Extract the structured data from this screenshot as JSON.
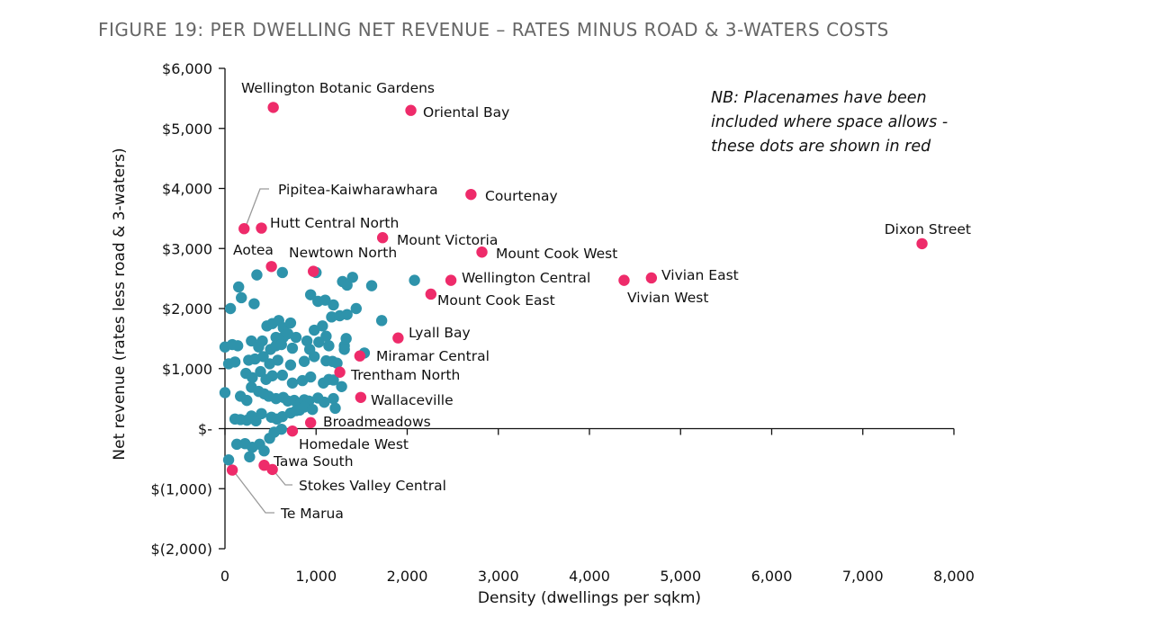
{
  "chart_data": {
    "type": "scatter",
    "title": "FIGURE 19: PER DWELLING NET REVENUE – RATES MINUS ROAD & 3-WATERS COSTS",
    "xlabel": "Density (dwellings per sqkm)",
    "ylabel": "Net revenue (rates less road & 3-waters)",
    "xlim": [
      0,
      8000
    ],
    "ylim": [
      -2000,
      6000
    ],
    "x_ticks": [
      0,
      1000,
      2000,
      3000,
      4000,
      5000,
      6000,
      7000,
      8000
    ],
    "x_tick_labels": [
      "0",
      "1,000",
      "2,000",
      "3,000",
      "4,000",
      "5,000",
      "6,000",
      "7,000",
      "8,000"
    ],
    "y_ticks": [
      6000,
      5000,
      4000,
      3000,
      2000,
      1000,
      0,
      -1000,
      -2000
    ],
    "y_tick_labels": [
      "$6,000",
      "$5,000",
      "$4,000",
      "$3,000",
      "$2,000",
      "$1,000",
      "$-",
      "$(1,000)",
      "$(2,000)"
    ],
    "grid": false,
    "note_lines": [
      "NB: Placenames have been",
      "included where space allows -",
      "these dots are shown in red"
    ],
    "colors": {
      "named": "#EE2B6A",
      "unnamed": "#2E93AB",
      "leader": "#9A9A9A"
    },
    "named_points": [
      {
        "label": "Wellington Botanic Gardens",
        "x": 530,
        "y": 5350
      },
      {
        "label": "Oriental Bay",
        "x": 2040,
        "y": 5300
      },
      {
        "label": "Courtenay",
        "x": 2700,
        "y": 3900
      },
      {
        "label": "Pipitea-Kaiwharawhara",
        "x": 210,
        "y": 3330
      },
      {
        "label": "Hutt Central North",
        "x": 400,
        "y": 3340
      },
      {
        "label": "Mount Victoria",
        "x": 1730,
        "y": 3180
      },
      {
        "label": "Mount Cook West",
        "x": 2820,
        "y": 2940
      },
      {
        "label": "Dixon Street",
        "x": 7650,
        "y": 3080
      },
      {
        "label": "Aotea",
        "x": 510,
        "y": 2700
      },
      {
        "label": "Newtown North",
        "x": 970,
        "y": 2620
      },
      {
        "label": "Wellington Central",
        "x": 2480,
        "y": 2470
      },
      {
        "label": "Vivian East",
        "x": 4680,
        "y": 2510
      },
      {
        "label": "Vivian West",
        "x": 4380,
        "y": 2470
      },
      {
        "label": "Mount Cook East",
        "x": 2260,
        "y": 2240
      },
      {
        "label": "Lyall Bay",
        "x": 1900,
        "y": 1510
      },
      {
        "label": "Miramar Central",
        "x": 1480,
        "y": 1210
      },
      {
        "label": "Trentham North",
        "x": 1260,
        "y": 940
      },
      {
        "label": "Wallaceville",
        "x": 1490,
        "y": 520
      },
      {
        "label": "Broadmeadows",
        "x": 940,
        "y": 100
      },
      {
        "label": "Homedale West",
        "x": 740,
        "y": -40
      },
      {
        "label": "Tawa South",
        "x": 430,
        "y": -610
      },
      {
        "label": "Stokes Valley Central",
        "x": 520,
        "y": -680
      },
      {
        "label": "Te Marua",
        "x": 80,
        "y": -690
      }
    ],
    "unnamed_points": [
      [
        60,
        2000
      ],
      [
        150,
        2360
      ],
      [
        180,
        2180
      ],
      [
        320,
        2080
      ],
      [
        350,
        2560
      ],
      [
        630,
        2600
      ],
      [
        1000,
        2600
      ],
      [
        1290,
        2450
      ],
      [
        1340,
        2390
      ],
      [
        1400,
        2520
      ],
      [
        1610,
        2380
      ],
      [
        2080,
        2470
      ],
      [
        940,
        2230
      ],
      [
        1020,
        2120
      ],
      [
        1100,
        2140
      ],
      [
        1190,
        2060
      ],
      [
        1170,
        1860
      ],
      [
        1260,
        1880
      ],
      [
        1340,
        1900
      ],
      [
        1440,
        2000
      ],
      [
        1720,
        1800
      ],
      [
        460,
        1710
      ],
      [
        520,
        1750
      ],
      [
        590,
        1800
      ],
      [
        640,
        1680
      ],
      [
        720,
        1760
      ],
      [
        560,
        1520
      ],
      [
        640,
        1520
      ],
      [
        690,
        1580
      ],
      [
        780,
        1520
      ],
      [
        980,
        1640
      ],
      [
        1070,
        1710
      ],
      [
        1110,
        1540
      ],
      [
        1030,
        1440
      ],
      [
        1140,
        1380
      ],
      [
        1310,
        1380
      ],
      [
        1330,
        1500
      ],
      [
        1310,
        1320
      ],
      [
        1530,
        1260
      ],
      [
        0,
        1360
      ],
      [
        80,
        1400
      ],
      [
        140,
        1380
      ],
      [
        290,
        1460
      ],
      [
        370,
        1360
      ],
      [
        410,
        1460
      ],
      [
        500,
        1320
      ],
      [
        560,
        1380
      ],
      [
        620,
        1400
      ],
      [
        740,
        1340
      ],
      [
        900,
        1460
      ],
      [
        40,
        1080
      ],
      [
        110,
        1110
      ],
      [
        260,
        1140
      ],
      [
        330,
        1160
      ],
      [
        420,
        1200
      ],
      [
        490,
        1080
      ],
      [
        580,
        1140
      ],
      [
        720,
        1060
      ],
      [
        870,
        1120
      ],
      [
        930,
        1320
      ],
      [
        980,
        1200
      ],
      [
        1110,
        1130
      ],
      [
        1180,
        1120
      ],
      [
        1230,
        1090
      ],
      [
        230,
        920
      ],
      [
        300,
        850
      ],
      [
        390,
        950
      ],
      [
        450,
        820
      ],
      [
        520,
        880
      ],
      [
        630,
        890
      ],
      [
        740,
        760
      ],
      [
        850,
        800
      ],
      [
        940,
        860
      ],
      [
        1080,
        760
      ],
      [
        1140,
        820
      ],
      [
        1190,
        810
      ],
      [
        1280,
        700
      ],
      [
        0,
        600
      ],
      [
        170,
        540
      ],
      [
        240,
        470
      ],
      [
        290,
        690
      ],
      [
        370,
        620
      ],
      [
        430,
        580
      ],
      [
        480,
        540
      ],
      [
        560,
        500
      ],
      [
        640,
        520
      ],
      [
        690,
        460
      ],
      [
        760,
        470
      ],
      [
        830,
        420
      ],
      [
        870,
        480
      ],
      [
        920,
        460
      ],
      [
        1020,
        510
      ],
      [
        1090,
        440
      ],
      [
        1190,
        500
      ],
      [
        110,
        160
      ],
      [
        170,
        150
      ],
      [
        240,
        140
      ],
      [
        290,
        210
      ],
      [
        340,
        130
      ],
      [
        400,
        250
      ],
      [
        510,
        190
      ],
      [
        570,
        160
      ],
      [
        630,
        200
      ],
      [
        720,
        260
      ],
      [
        780,
        300
      ],
      [
        820,
        310
      ],
      [
        870,
        360
      ],
      [
        960,
        320
      ],
      [
        1210,
        340
      ],
      [
        220,
        -250
      ],
      [
        300,
        -310
      ],
      [
        380,
        -260
      ],
      [
        430,
        -370
      ],
      [
        490,
        -160
      ],
      [
        540,
        -60
      ],
      [
        620,
        -10
      ],
      [
        130,
        -260
      ],
      [
        270,
        -470
      ],
      [
        40,
        -520
      ]
    ]
  }
}
